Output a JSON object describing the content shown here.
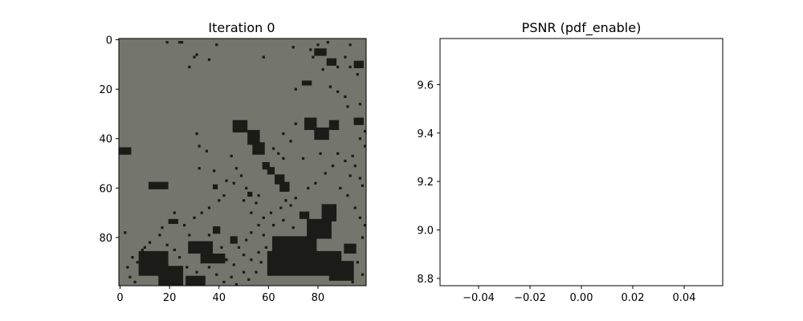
{
  "chart_data": [
    {
      "type": "heatmap",
      "title": "Iteration 0",
      "xlabel": "",
      "ylabel": "",
      "xlim": [
        -0.5,
        99.5
      ],
      "ylim": [
        99.5,
        -0.5
      ],
      "xticks": [
        0,
        20,
        40,
        60,
        80
      ],
      "yticks": [
        0,
        20,
        40,
        60,
        80
      ],
      "xtick_labels": [
        "0",
        "20",
        "40",
        "60",
        "80"
      ],
      "ytick_labels": [
        "0",
        "20",
        "40",
        "60",
        "80"
      ],
      "image": {
        "width": 100,
        "height": 100,
        "background_color": "#74756c",
        "dark_color": "#1b1c18",
        "dark_regions": [
          {
            "x": 0,
            "y": 44,
            "w": 5,
            "h": 3
          },
          {
            "x": 12,
            "y": 58,
            "w": 8,
            "h": 3
          },
          {
            "x": 8,
            "y": 86,
            "w": 12,
            "h": 10
          },
          {
            "x": 16,
            "y": 92,
            "w": 10,
            "h": 8
          },
          {
            "x": 27,
            "y": 96,
            "w": 8,
            "h": 4
          },
          {
            "x": 28,
            "y": 82,
            "w": 10,
            "h": 5
          },
          {
            "x": 33,
            "y": 87,
            "w": 10,
            "h": 4
          },
          {
            "x": 20,
            "y": 73,
            "w": 4,
            "h": 2
          },
          {
            "x": 46,
            "y": 33,
            "w": 6,
            "h": 5
          },
          {
            "x": 52,
            "y": 37,
            "w": 5,
            "h": 6
          },
          {
            "x": 54,
            "y": 42,
            "w": 5,
            "h": 5
          },
          {
            "x": 58,
            "y": 50,
            "w": 3,
            "h": 3
          },
          {
            "x": 60,
            "y": 52,
            "w": 3,
            "h": 3
          },
          {
            "x": 63,
            "y": 55,
            "w": 4,
            "h": 4
          },
          {
            "x": 65,
            "y": 58,
            "w": 4,
            "h": 4
          },
          {
            "x": 75,
            "y": 32,
            "w": 5,
            "h": 5
          },
          {
            "x": 79,
            "y": 36,
            "w": 6,
            "h": 5
          },
          {
            "x": 85,
            "y": 33,
            "w": 4,
            "h": 4
          },
          {
            "x": 95,
            "y": 32,
            "w": 4,
            "h": 3
          },
          {
            "x": 79,
            "y": 4,
            "w": 5,
            "h": 3
          },
          {
            "x": 84,
            "y": 8,
            "w": 4,
            "h": 3
          },
          {
            "x": 74,
            "y": 17,
            "w": 4,
            "h": 2
          },
          {
            "x": 95,
            "y": 9,
            "w": 4,
            "h": 3
          },
          {
            "x": 60,
            "y": 86,
            "w": 30,
            "h": 10
          },
          {
            "x": 62,
            "y": 80,
            "w": 18,
            "h": 7
          },
          {
            "x": 76,
            "y": 73,
            "w": 10,
            "h": 8
          },
          {
            "x": 82,
            "y": 67,
            "w": 6,
            "h": 7
          },
          {
            "x": 85,
            "y": 90,
            "w": 10,
            "h": 8
          },
          {
            "x": 73,
            "y": 70,
            "w": 4,
            "h": 3
          },
          {
            "x": 91,
            "y": 83,
            "w": 5,
            "h": 4
          },
          {
            "x": 38,
            "y": 76,
            "w": 3,
            "h": 3
          },
          {
            "x": 45,
            "y": 80,
            "w": 3,
            "h": 3
          },
          {
            "x": 38,
            "y": 59,
            "w": 2,
            "h": 2
          },
          {
            "x": 52,
            "y": 62,
            "w": 2,
            "h": 2
          }
        ],
        "dark_dots": [
          [
            30,
            7
          ],
          [
            31,
            6
          ],
          [
            36,
            8
          ],
          [
            39,
            2
          ],
          [
            19,
            1
          ],
          [
            24,
            1
          ],
          [
            25,
            1
          ],
          [
            28,
            11
          ],
          [
            58,
            7
          ],
          [
            70,
            3
          ],
          [
            77,
            4
          ],
          [
            78,
            7
          ],
          [
            82,
            12
          ],
          [
            88,
            11
          ],
          [
            91,
            7
          ],
          [
            93,
            2
          ],
          [
            84,
            1
          ],
          [
            80,
            2
          ],
          [
            71,
            20
          ],
          [
            85,
            19
          ],
          [
            88,
            21
          ],
          [
            91,
            23
          ],
          [
            92,
            27
          ],
          [
            97,
            26
          ],
          [
            93,
            11
          ],
          [
            96,
            14
          ],
          [
            71,
            34
          ],
          [
            66,
            38
          ],
          [
            69,
            41
          ],
          [
            62,
            44
          ],
          [
            64,
            46
          ],
          [
            66,
            48
          ],
          [
            74,
            48
          ],
          [
            81,
            46
          ],
          [
            88,
            46
          ],
          [
            91,
            49
          ],
          [
            94,
            47
          ],
          [
            93,
            55
          ],
          [
            97,
            56
          ],
          [
            98,
            59
          ],
          [
            95,
            51
          ],
          [
            99,
            43
          ],
          [
            31,
            38
          ],
          [
            32,
            43
          ],
          [
            35,
            45
          ],
          [
            45,
            47
          ],
          [
            47,
            52
          ],
          [
            49,
            55
          ],
          [
            38,
            53
          ],
          [
            32,
            52
          ],
          [
            43,
            57
          ],
          [
            46,
            58
          ],
          [
            51,
            60
          ],
          [
            56,
            63
          ],
          [
            55,
            66
          ],
          [
            53,
            70
          ],
          [
            50,
            65
          ],
          [
            42,
            63
          ],
          [
            40,
            65
          ],
          [
            36,
            68
          ],
          [
            33,
            70
          ],
          [
            30,
            72
          ],
          [
            26,
            75
          ],
          [
            22,
            70
          ],
          [
            17,
            76
          ],
          [
            16,
            79
          ],
          [
            12,
            82
          ],
          [
            9,
            85
          ],
          [
            5,
            88
          ],
          [
            7,
            90
          ],
          [
            3,
            92
          ],
          [
            4,
            96
          ],
          [
            6,
            98
          ],
          [
            10,
            84
          ],
          [
            2,
            78
          ],
          [
            28,
            79
          ],
          [
            30,
            84
          ],
          [
            36,
            79
          ],
          [
            41,
            84
          ],
          [
            43,
            89
          ],
          [
            46,
            91
          ],
          [
            50,
            94
          ],
          [
            52,
            97
          ],
          [
            55,
            94
          ],
          [
            57,
            90
          ],
          [
            50,
            87
          ],
          [
            48,
            84
          ],
          [
            51,
            81
          ],
          [
            53,
            78
          ],
          [
            56,
            75
          ],
          [
            58,
            72
          ],
          [
            61,
            70
          ],
          [
            65,
            68
          ],
          [
            67,
            65
          ],
          [
            69,
            67
          ],
          [
            71,
            64
          ],
          [
            76,
            60
          ],
          [
            79,
            58
          ],
          [
            83,
            54
          ],
          [
            86,
            51
          ],
          [
            89,
            60
          ],
          [
            92,
            63
          ],
          [
            95,
            68
          ],
          [
            97,
            72
          ],
          [
            99,
            75
          ],
          [
            98,
            80
          ],
          [
            96,
            90
          ],
          [
            98,
            95
          ],
          [
            94,
            98
          ],
          [
            70,
            76
          ],
          [
            66,
            73
          ],
          [
            62,
            75
          ],
          [
            58,
            79
          ],
          [
            59,
            84
          ],
          [
            56,
            86
          ],
          [
            53,
            89
          ],
          [
            27,
            92
          ],
          [
            24,
            88
          ],
          [
            22,
            85
          ],
          [
            19,
            83
          ],
          [
            18,
            90
          ],
          [
            23,
            97
          ],
          [
            31,
            94
          ],
          [
            36,
            92
          ],
          [
            39,
            95
          ],
          [
            42,
            98
          ],
          [
            45,
            96
          ],
          [
            47,
            99
          ],
          [
            99,
            37
          ],
          [
            97,
            40
          ]
        ]
      }
    },
    {
      "type": "line",
      "title": "PSNR (pdf_enable)",
      "xlabel": "",
      "ylabel": "",
      "xlim": [
        -0.055,
        0.055
      ],
      "ylim": [
        8.77,
        9.79
      ],
      "xticks": [
        -0.04,
        -0.02,
        0.0,
        0.02,
        0.04
      ],
      "yticks": [
        8.8,
        9.0,
        9.2,
        9.4,
        9.6
      ],
      "xtick_labels": [
        "−0.04",
        "−0.02",
        "0.00",
        "0.02",
        "0.04"
      ],
      "ytick_labels": [
        "8.8",
        "9.0",
        "9.2",
        "9.4",
        "9.6"
      ],
      "series": [
        {
          "values": []
        }
      ]
    }
  ]
}
